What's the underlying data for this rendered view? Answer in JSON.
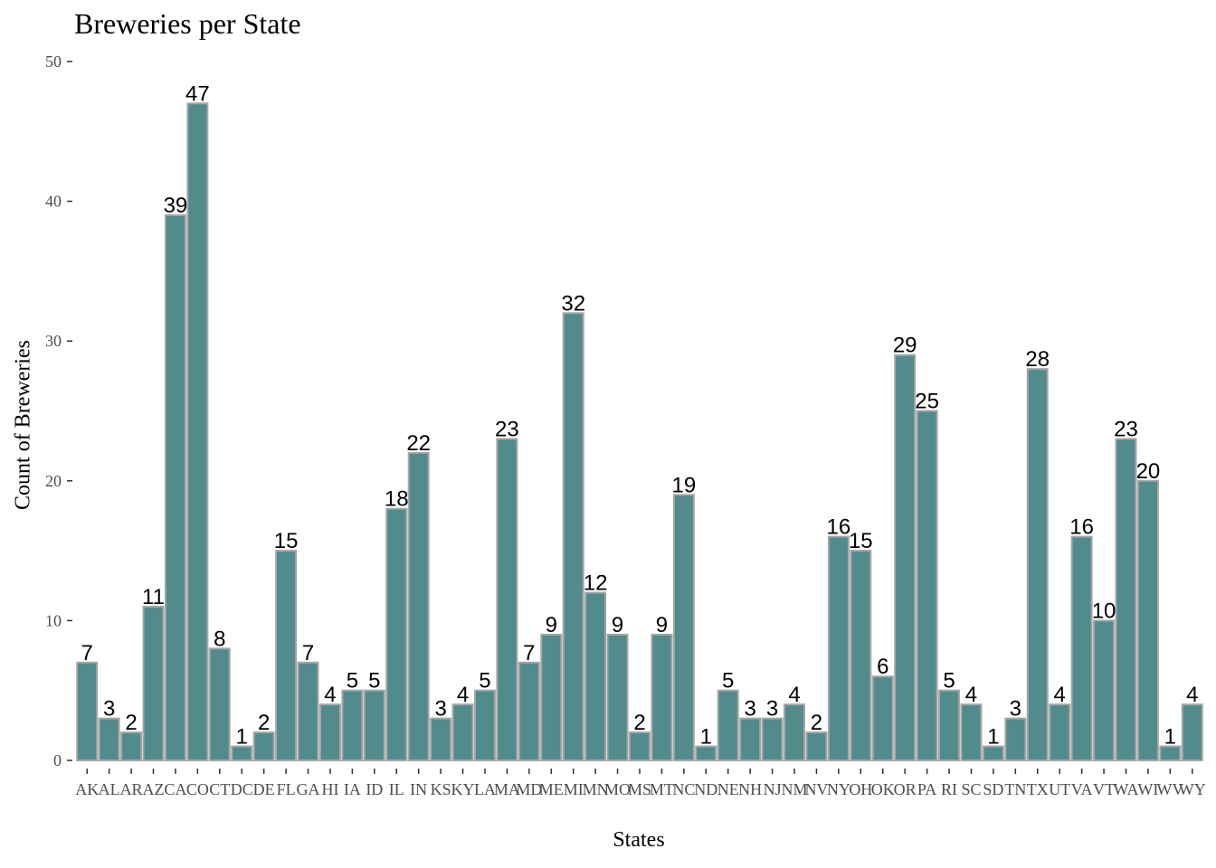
{
  "chart_data": {
    "type": "bar",
    "title": "Breweries per State",
    "xlabel": "States",
    "ylabel": "Count of Breweries",
    "ylim": [
      0,
      50
    ],
    "yticks": [
      0,
      10,
      20,
      30,
      40,
      50
    ],
    "grid": false,
    "legend": "none",
    "categories": [
      "AK",
      "AL",
      "AR",
      "AZ",
      "CA",
      "CO",
      "CT",
      "DC",
      "DE",
      "FL",
      "GA",
      "HI",
      "IA",
      "ID",
      "IL",
      "IN",
      "KS",
      "KY",
      "LA",
      "MA",
      "MD",
      "ME",
      "MI",
      "MN",
      "MO",
      "MS",
      "MT",
      "NC",
      "ND",
      "NE",
      "NH",
      "NJ",
      "NM",
      "NV",
      "NY",
      "OH",
      "OK",
      "OR",
      "PA",
      "RI",
      "SC",
      "SD",
      "TN",
      "TX",
      "UT",
      "VA",
      "VT",
      "WA",
      "WI",
      "WV",
      "WY"
    ],
    "values": [
      7,
      3,
      2,
      11,
      39,
      47,
      8,
      1,
      2,
      15,
      7,
      4,
      5,
      5,
      18,
      22,
      3,
      4,
      5,
      23,
      7,
      9,
      32,
      12,
      9,
      2,
      9,
      19,
      1,
      5,
      3,
      3,
      4,
      2,
      16,
      15,
      6,
      29,
      25,
      5,
      4,
      1,
      3,
      28,
      4,
      16,
      10,
      23,
      20,
      1,
      4
    ],
    "bar_fill": "#528b8b",
    "bar_stroke": "#a6a6a6"
  }
}
